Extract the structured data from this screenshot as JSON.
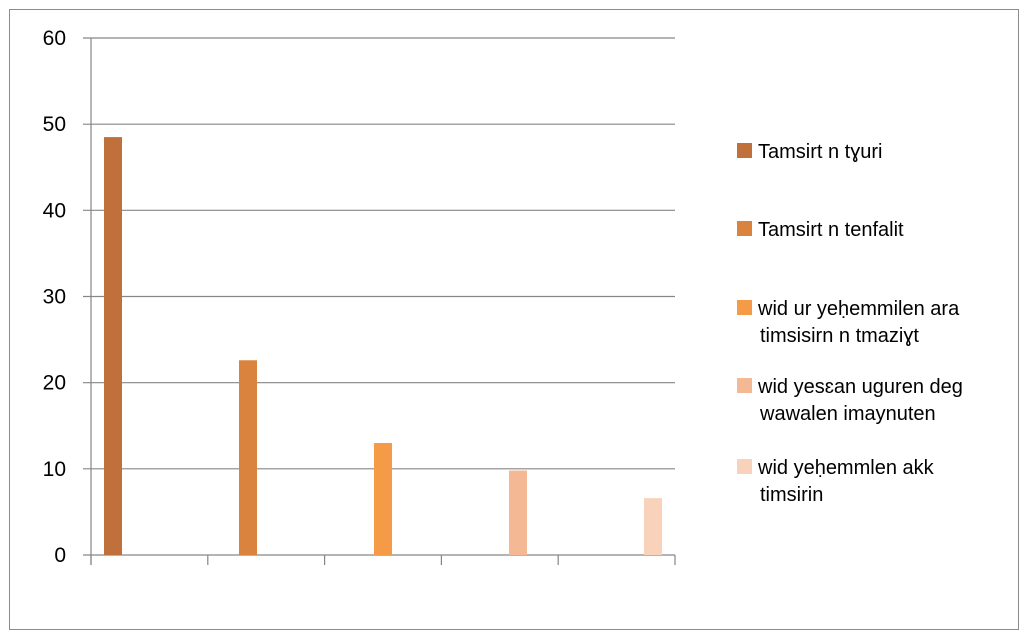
{
  "chart_data": {
    "type": "bar",
    "title": "",
    "xlabel": "",
    "ylabel": "",
    "ylim": [
      0,
      60
    ],
    "y_ticks": [
      "0",
      "10",
      "20",
      "30",
      "40",
      "50",
      "60"
    ],
    "grid": true,
    "legend_position": "right",
    "series": [
      {
        "name": "Tamsirt n tɣuri",
        "value": 48.5,
        "color": "#c0703a",
        "legend_lines": [
          "Tamsirt n tɣuri"
        ]
      },
      {
        "name": "Tamsirt n tenfalit",
        "value": 22.6,
        "color": "#d9833f",
        "legend_lines": [
          "Tamsirt n tenfalit"
        ]
      },
      {
        "name": " wid ur yeḥemmilen ara timsisirn n tmaziɣt",
        "value": 13.0,
        "color": "#f59a47",
        "legend_lines": [
          " wid ur yeḥemmilen ara",
          "timsisirn n tmaziɣt"
        ]
      },
      {
        "name": "wid yesɛan uguren deg wawalen imaynuten",
        "value": 9.8,
        "color": "#f5b895",
        "legend_lines": [
          "wid yesɛan uguren deg",
          "wawalen imaynuten"
        ]
      },
      {
        "name": "wid yeḥemmlen akk timsirin",
        "value": 6.6,
        "color": "#f8d2bb",
        "legend_lines": [
          "wid yeḥemmlen akk",
          "timsirin"
        ]
      }
    ]
  }
}
